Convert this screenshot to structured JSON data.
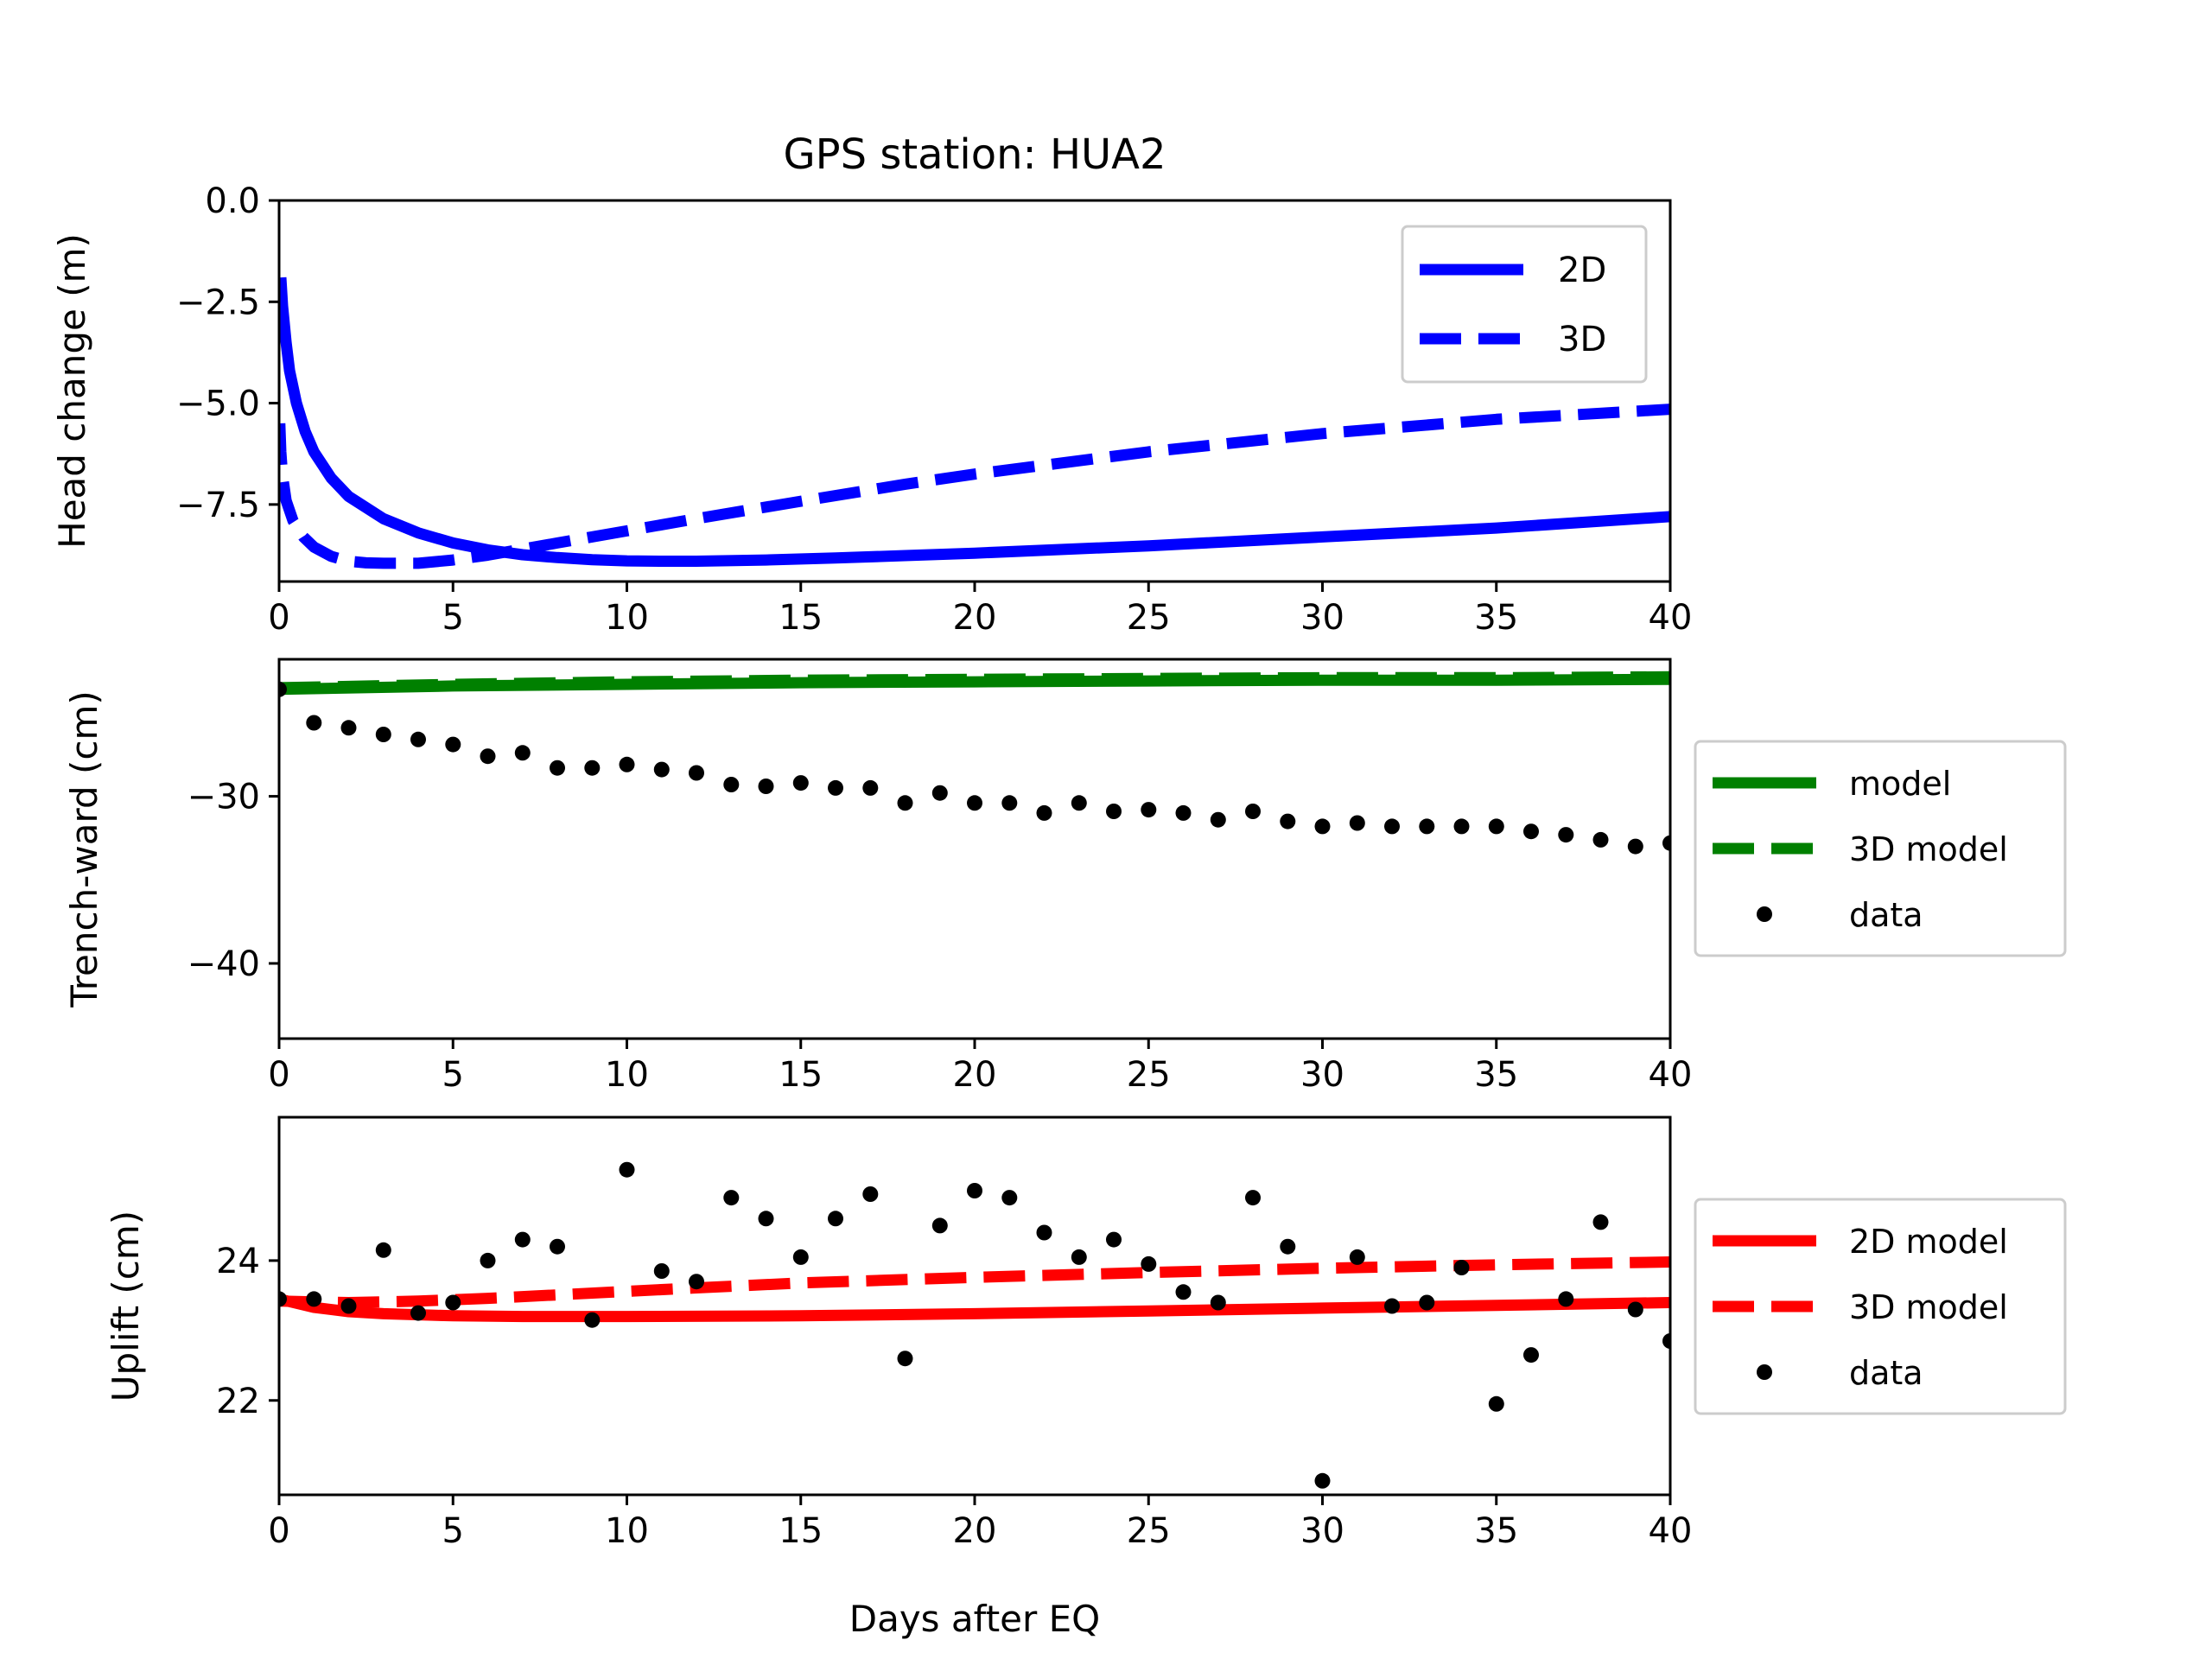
{
  "figure": {
    "title": "GPS station: HUA2",
    "xlabel": "Days after EQ"
  },
  "colors": {
    "head": "#0000ff",
    "trench": "#008000",
    "uplift": "#ff0000",
    "data": "#000000"
  },
  "chart_data": [
    {
      "type": "line",
      "id": "head",
      "title": "GPS station: HUA2",
      "xlabel": "",
      "ylabel": "Head change (m)",
      "xlim": [
        0,
        40
      ],
      "ylim": [
        -9.4,
        0
      ],
      "xticks": [
        "0",
        "5",
        "10",
        "15",
        "20",
        "25",
        "30",
        "35",
        "40"
      ],
      "yticks": [
        {
          "v": 0.0,
          "label": "0.0"
        },
        {
          "v": -2.5,
          "label": "−2.5"
        },
        {
          "v": -5.0,
          "label": "−5.0"
        },
        {
          "v": -7.5,
          "label": "−7.5"
        }
      ],
      "legend_position": "top-right",
      "series": [
        {
          "name": "2D",
          "style": "solid",
          "x": [
            0.05,
            0.1,
            0.2,
            0.3,
            0.5,
            0.75,
            1,
            1.5,
            2,
            3,
            4,
            5,
            6,
            7,
            8,
            9,
            10,
            11,
            12,
            14,
            16,
            18,
            20,
            25,
            30,
            35,
            40
          ],
          "y": [
            -1.9,
            -2.6,
            -3.5,
            -4.2,
            -5.0,
            -5.7,
            -6.2,
            -6.85,
            -7.3,
            -7.85,
            -8.2,
            -8.45,
            -8.62,
            -8.74,
            -8.81,
            -8.86,
            -8.89,
            -8.9,
            -8.9,
            -8.87,
            -8.82,
            -8.76,
            -8.7,
            -8.52,
            -8.3,
            -8.08,
            -7.8
          ]
        },
        {
          "name": "3D",
          "style": "dashed",
          "x": [
            0.02,
            0.05,
            0.1,
            0.2,
            0.4,
            0.7,
            1,
            1.5,
            2,
            2.5,
            3,
            4,
            5,
            6,
            7,
            8,
            10,
            12,
            15,
            18,
            20,
            25,
            30,
            35,
            40
          ],
          "y": [
            -5.5,
            -6.2,
            -6.8,
            -7.4,
            -7.9,
            -8.3,
            -8.55,
            -8.78,
            -8.9,
            -8.94,
            -8.95,
            -8.95,
            -8.87,
            -8.75,
            -8.6,
            -8.45,
            -8.15,
            -7.85,
            -7.42,
            -7.0,
            -6.75,
            -6.2,
            -5.75,
            -5.4,
            -5.15
          ]
        }
      ]
    },
    {
      "type": "line",
      "id": "trench",
      "xlabel": "",
      "ylabel": "Trench-ward (cm)",
      "xlim": [
        0,
        40
      ],
      "ylim": [
        -44.5,
        -21.8
      ],
      "xticks": [
        "0",
        "5",
        "10",
        "15",
        "20",
        "25",
        "30",
        "35",
        "40"
      ],
      "yticks": [
        {
          "v": -30,
          "label": "−30"
        },
        {
          "v": -40,
          "label": "−40"
        }
      ],
      "legend_position": "outside-right",
      "series": [
        {
          "name": "model",
          "style": "solid",
          "x": [
            0,
            5,
            10,
            15,
            20,
            25,
            30,
            35,
            40
          ],
          "y": [
            -23.6,
            -23.4,
            -23.3,
            -23.2,
            -23.15,
            -23.1,
            -23.05,
            -23.05,
            -23.0
          ]
        },
        {
          "name": "3D model",
          "style": "dashed",
          "x": [
            0,
            5,
            10,
            15,
            20,
            25,
            30,
            35,
            40
          ],
          "y": [
            -23.5,
            -23.3,
            -23.15,
            -23.05,
            -23.0,
            -22.95,
            -22.9,
            -22.9,
            -22.85
          ]
        },
        {
          "name": "data",
          "style": "points",
          "x": [
            0,
            1,
            2,
            3,
            4,
            5,
            6,
            7,
            8,
            9,
            10,
            11,
            12,
            13,
            14,
            15,
            16,
            17,
            18,
            19,
            20,
            21,
            22,
            23,
            24,
            25,
            26,
            27,
            28,
            29,
            30,
            31,
            32,
            33,
            34,
            35,
            36,
            37,
            38,
            39,
            40
          ],
          "y": [
            -23.6,
            -25.6,
            -25.9,
            -26.3,
            -26.6,
            -26.9,
            -27.6,
            -27.4,
            -28.3,
            -28.3,
            -28.1,
            -28.4,
            -28.6,
            -29.3,
            -29.4,
            -29.2,
            -29.5,
            -29.5,
            -30.4,
            -29.8,
            -30.4,
            -30.4,
            -31.0,
            -30.4,
            -30.9,
            -30.8,
            -31.0,
            -31.4,
            -30.9,
            -31.5,
            -31.8,
            -31.6,
            -31.8,
            -31.8,
            -31.8,
            -31.8,
            -32.1,
            -32.3,
            -32.6,
            -33.0,
            -32.8
          ]
        }
      ]
    },
    {
      "type": "line",
      "id": "uplift",
      "xlabel": "Days after EQ",
      "ylabel": "Uplift (cm)",
      "xlim": [
        0,
        40
      ],
      "ylim": [
        20.65,
        26.05
      ],
      "xticks": [
        "0",
        "5",
        "10",
        "15",
        "20",
        "25",
        "30",
        "35",
        "40"
      ],
      "yticks": [
        {
          "v": 22,
          "label": "22"
        },
        {
          "v": 24,
          "label": "24"
        }
      ],
      "legend_position": "outside-right",
      "series": [
        {
          "name": "2D model",
          "style": "solid",
          "x": [
            0,
            1,
            2,
            3,
            5,
            7,
            10,
            15,
            20,
            25,
            30,
            35,
            40
          ],
          "y": [
            23.45,
            23.33,
            23.27,
            23.24,
            23.21,
            23.2,
            23.2,
            23.21,
            23.24,
            23.28,
            23.32,
            23.36,
            23.4
          ]
        },
        {
          "name": "3D model",
          "style": "dashed",
          "x": [
            0,
            2,
            4,
            6,
            8,
            10,
            12,
            15,
            20,
            25,
            30,
            35,
            40
          ],
          "y": [
            23.42,
            23.4,
            23.42,
            23.46,
            23.51,
            23.56,
            23.61,
            23.68,
            23.76,
            23.83,
            23.89,
            23.94,
            23.98
          ]
        },
        {
          "name": "data",
          "style": "points",
          "x": [
            0,
            1,
            2,
            3,
            4,
            5,
            6,
            7,
            8,
            9,
            10,
            11,
            12,
            13,
            14,
            15,
            16,
            17,
            18,
            19,
            20,
            21,
            22,
            23,
            24,
            25,
            26,
            27,
            28,
            29,
            30,
            31,
            32,
            33,
            34,
            35,
            36,
            37,
            38,
            39,
            40
          ],
          "y": [
            23.45,
            23.45,
            23.35,
            24.15,
            23.25,
            23.4,
            24.0,
            24.3,
            24.2,
            23.15,
            25.3,
            23.85,
            23.7,
            24.9,
            24.6,
            24.05,
            24.6,
            24.95,
            22.6,
            24.5,
            25.0,
            24.9,
            24.4,
            24.05,
            24.3,
            23.95,
            23.55,
            23.4,
            24.9,
            24.2,
            20.85,
            24.05,
            23.35,
            23.4,
            23.9,
            21.95,
            22.65,
            23.45,
            24.55,
            23.3,
            22.85
          ]
        }
      ]
    }
  ]
}
